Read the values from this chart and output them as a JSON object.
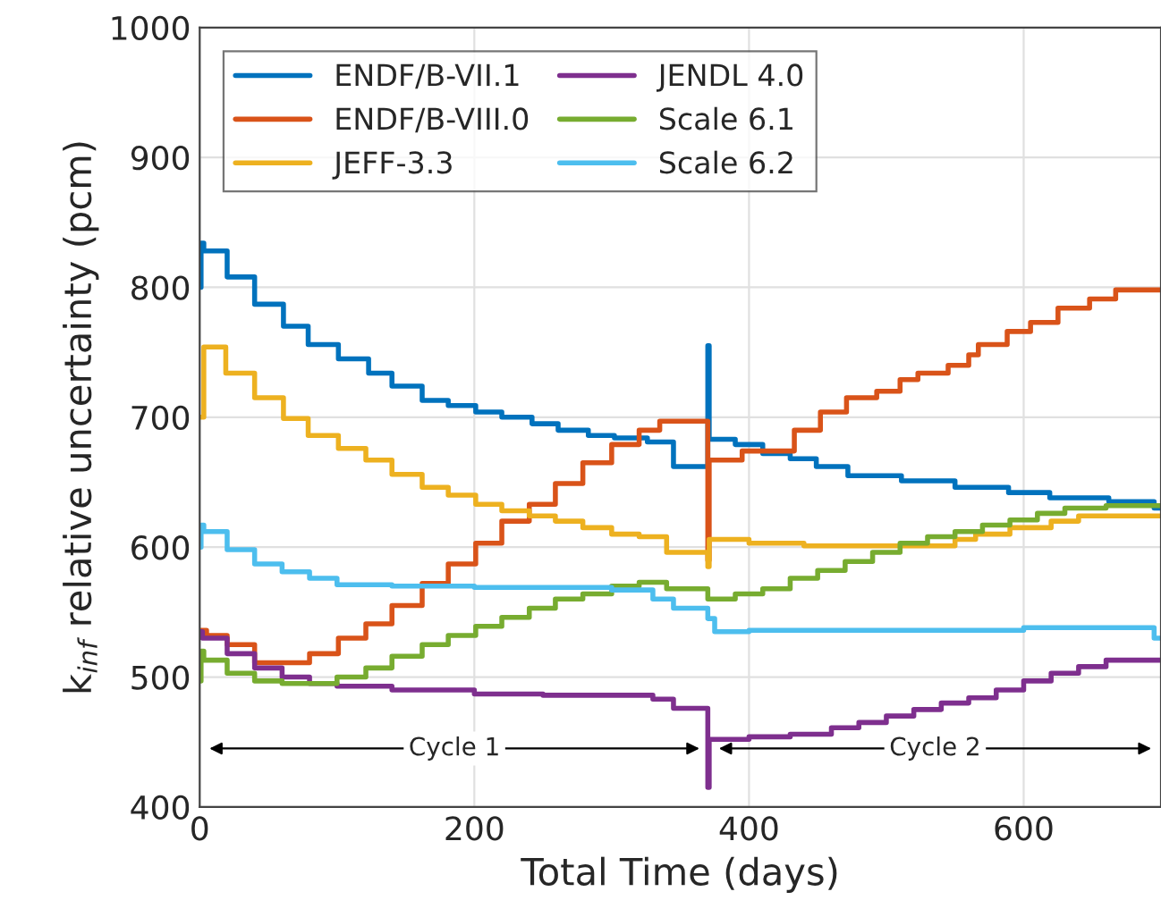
{
  "chart_data": {
    "type": "step",
    "xlabel": "Total Time (days)",
    "ylabel": "k$_{inf}$ relative uncertainty (pcm)",
    "xlim": [
      0,
      700
    ],
    "xticks": [
      0,
      200,
      400,
      600
    ],
    "ylim": [
      400,
      1000
    ],
    "yticks": [
      400,
      500,
      600,
      700,
      800,
      900,
      1000
    ],
    "grid": true,
    "legend": "top left",
    "annotations": [
      "Cycle 1",
      "Cycle 2"
    ],
    "series": [
      {
        "name": "ENDF/B-VII.1",
        "color": "#0072bd",
        "x": [
          0,
          1,
          3,
          20,
          40,
          61,
          79,
          101,
          123,
          140,
          162,
          181,
          201,
          220,
          242,
          261,
          283,
          302,
          326,
          345,
          370,
          371,
          390,
          410,
          430,
          449,
          472,
          511,
          550,
          589,
          619,
          662,
          695,
          700
        ],
        "values": [
          800,
          834,
          828,
          808,
          787,
          770,
          756,
          745,
          734,
          724,
          713,
          709,
          704,
          700,
          695,
          690,
          686,
          684,
          681,
          662,
          755,
          683,
          679,
          672,
          668,
          662,
          655,
          651,
          646,
          642,
          638,
          635,
          630,
          630
        ]
      },
      {
        "name": "ENDF/B-VIII.0",
        "color": "#d95319",
        "x": [
          0,
          5,
          20,
          40,
          80,
          101,
          121,
          140,
          162,
          181,
          201,
          220,
          240,
          259,
          279,
          300,
          320,
          335,
          370,
          371,
          395,
          433,
          452,
          471,
          493,
          510,
          523,
          545,
          560,
          567,
          588,
          605,
          625,
          648,
          667,
          700
        ],
        "values": [
          536,
          532,
          525,
          511,
          518,
          530,
          541,
          555,
          572,
          587,
          603,
          620,
          633,
          649,
          665,
          679,
          690,
          697,
          590,
          667,
          674,
          690,
          704,
          715,
          720,
          729,
          734,
          740,
          748,
          756,
          766,
          773,
          784,
          791,
          798,
          798
        ]
      },
      {
        "name": "JEFF-3.3",
        "color": "#edb120",
        "x": [
          0,
          3,
          19,
          40,
          61,
          79,
          101,
          121,
          140,
          162,
          181,
          201,
          220,
          240,
          259,
          279,
          300,
          320,
          340,
          370,
          371,
          400,
          440,
          550,
          565,
          590,
          620,
          640,
          700
        ],
        "values": [
          700,
          754,
          734,
          715,
          699,
          686,
          676,
          667,
          656,
          646,
          640,
          633,
          628,
          624,
          620,
          615,
          610,
          608,
          596,
          585,
          606,
          603,
          601,
          606,
          610,
          615,
          620,
          624,
          624
        ]
      },
      {
        "name": "JENDL 4.0",
        "color": "#7e2f8e",
        "x": [
          0,
          2,
          20,
          40,
          60,
          80,
          100,
          140,
          200,
          250,
          330,
          345,
          370,
          371,
          400,
          430,
          460,
          480,
          500,
          520,
          540,
          560,
          580,
          600,
          620,
          640,
          660,
          700
        ],
        "values": [
          535,
          530,
          518,
          507,
          500,
          495,
          493,
          490,
          487,
          486,
          483,
          476,
          415,
          452,
          454,
          456,
          461,
          465,
          470,
          475,
          480,
          484,
          490,
          497,
          503,
          508,
          513,
          513
        ]
      },
      {
        "name": "Scale 6.1",
        "color": "#77ac30",
        "x": [
          0,
          1,
          3,
          20,
          40,
          60,
          100,
          121,
          140,
          162,
          181,
          201,
          220,
          240,
          259,
          279,
          300,
          320,
          340,
          370,
          390,
          410,
          430,
          450,
          470,
          490,
          510,
          530,
          550,
          570,
          590,
          610,
          630,
          660,
          700
        ],
        "values": [
          497,
          520,
          513,
          503,
          497,
          495,
          500,
          507,
          516,
          525,
          532,
          539,
          546,
          553,
          560,
          564,
          570,
          573,
          568,
          560,
          564,
          568,
          576,
          582,
          589,
          596,
          603,
          608,
          612,
          617,
          621,
          626,
          630,
          632,
          632
        ]
      },
      {
        "name": "Scale 6.2",
        "color": "#4dbeee",
        "x": [
          0,
          1,
          3,
          20,
          40,
          60,
          80,
          100,
          140,
          200,
          300,
          330,
          345,
          370,
          375,
          400,
          600,
          695,
          700
        ],
        "values": [
          600,
          617,
          612,
          598,
          587,
          581,
          576,
          571,
          570,
          569,
          567,
          560,
          553,
          545,
          535,
          536,
          538,
          530,
          530
        ]
      }
    ]
  }
}
